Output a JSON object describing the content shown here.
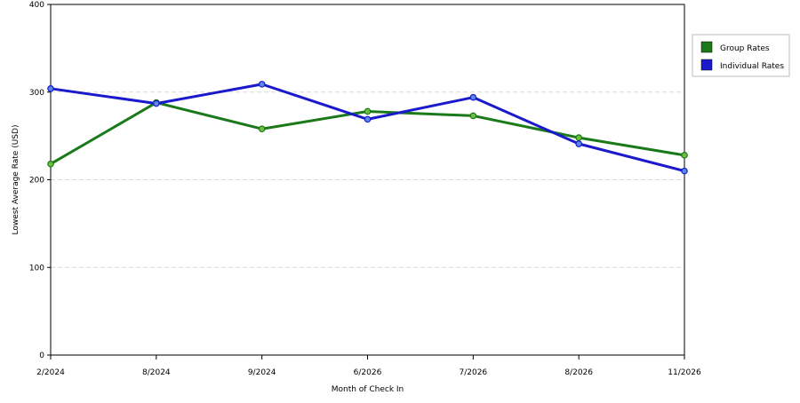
{
  "chart_data": {
    "type": "line",
    "categories": [
      "2/2024",
      "8/2024",
      "9/2024",
      "6/2026",
      "7/2026",
      "8/2026",
      "11/2026"
    ],
    "series": [
      {
        "name": "Group Rates",
        "color": "#1a7a1a",
        "values": [
          218,
          288,
          258,
          278,
          273,
          248,
          228
        ]
      },
      {
        "name": "Individual Rates",
        "color": "#1a1acc",
        "values": [
          304,
          287,
          309,
          269,
          294,
          241,
          210
        ]
      }
    ],
    "xlabel": "Month of Check In",
    "ylabel": "Lowest Average Rate (USD)",
    "ylim": [
      0,
      400
    ],
    "yticks": [
      0,
      100,
      200,
      300,
      400
    ],
    "grid": "horizontal-dashed",
    "legend": "right"
  }
}
